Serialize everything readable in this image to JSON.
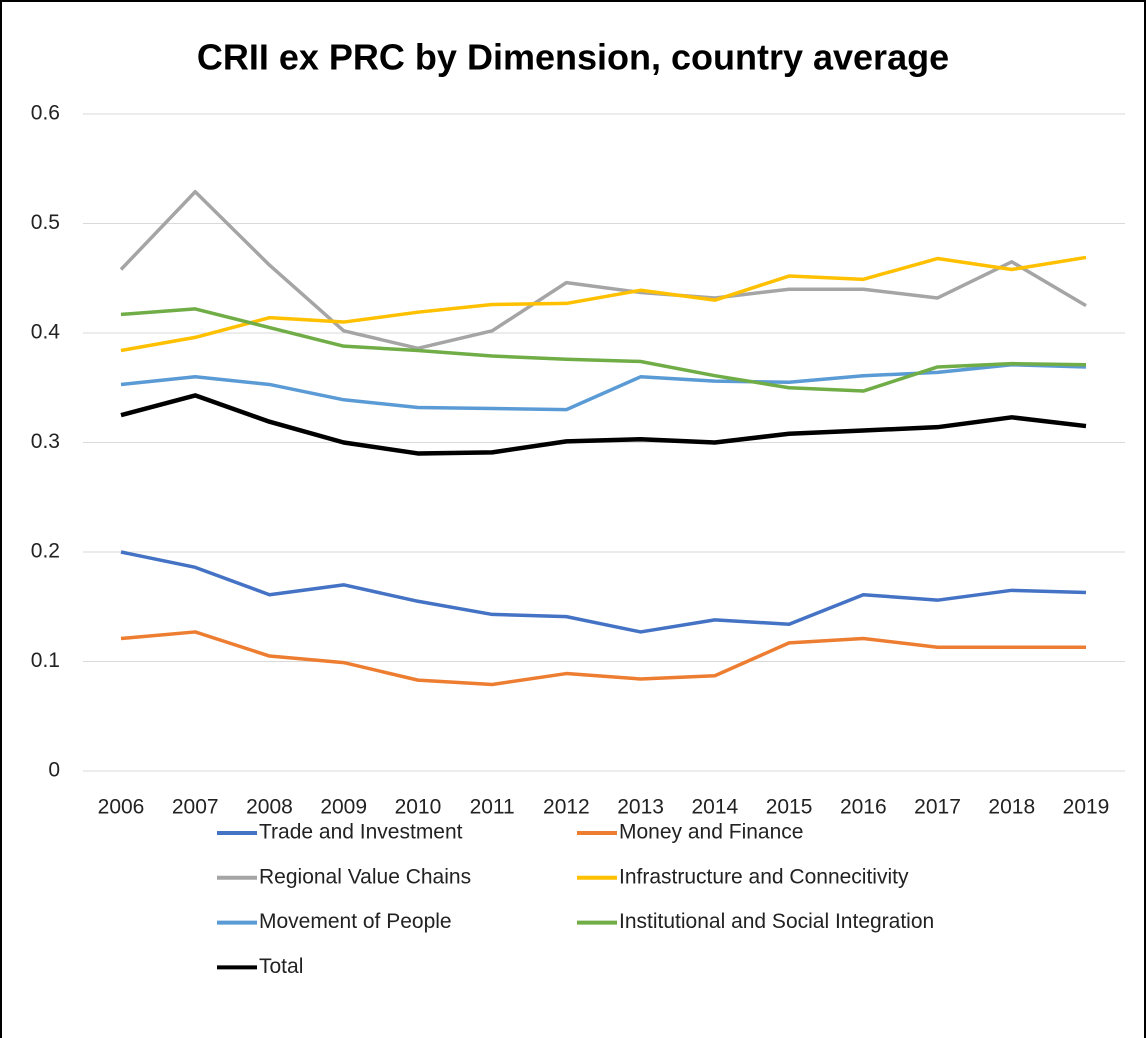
{
  "chart_data": {
    "type": "line",
    "title": "CRII ex PRC by Dimension, country average",
    "categories": [
      "2006",
      "2007",
      "2008",
      "2009",
      "2010",
      "2011",
      "2012",
      "2013",
      "2014",
      "2015",
      "2016",
      "2017",
      "2018",
      "2019"
    ],
    "series": [
      {
        "name": "Trade and Investment",
        "color": "#4472c4",
        "values": [
          0.2,
          0.186,
          0.161,
          0.17,
          0.155,
          0.143,
          0.141,
          0.127,
          0.138,
          0.134,
          0.161,
          0.156,
          0.165,
          0.163
        ]
      },
      {
        "name": "Money and Finance",
        "color": "#ed7d31",
        "values": [
          0.121,
          0.127,
          0.105,
          0.099,
          0.083,
          0.079,
          0.089,
          0.084,
          0.087,
          0.117,
          0.121,
          0.113,
          0.113,
          0.113
        ]
      },
      {
        "name": "Regional Value Chains",
        "color": "#a5a5a5",
        "values": [
          0.458,
          0.529,
          0.462,
          0.402,
          0.386,
          0.402,
          0.446,
          0.437,
          0.432,
          0.44,
          0.44,
          0.432,
          0.465,
          0.425
        ]
      },
      {
        "name": "Infrastructure and Connecitivity",
        "color": "#ffc000",
        "values": [
          0.384,
          0.396,
          0.414,
          0.41,
          0.419,
          0.426,
          0.427,
          0.439,
          0.43,
          0.452,
          0.449,
          0.468,
          0.458,
          0.469
        ]
      },
      {
        "name": "Movement of People",
        "color": "#5b9bd5",
        "values": [
          0.353,
          0.36,
          0.353,
          0.339,
          0.332,
          0.331,
          0.33,
          0.36,
          0.356,
          0.355,
          0.361,
          0.364,
          0.371,
          0.369
        ]
      },
      {
        "name": "Institutional and Social Integration",
        "color": "#70ad47",
        "values": [
          0.417,
          0.422,
          0.405,
          0.388,
          0.384,
          0.379,
          0.376,
          0.374,
          0.361,
          0.35,
          0.347,
          0.369,
          0.372,
          0.371
        ]
      },
      {
        "name": "Total",
        "color": "#000000",
        "values": [
          0.325,
          0.343,
          0.319,
          0.3,
          0.29,
          0.291,
          0.301,
          0.303,
          0.3,
          0.308,
          0.311,
          0.314,
          0.323,
          0.315
        ]
      }
    ],
    "ylim": [
      0,
      0.6
    ],
    "yticks": [
      0,
      0.1,
      0.2,
      0.3,
      0.4,
      0.5,
      0.6
    ],
    "grid": true,
    "legend": "bottom"
  }
}
